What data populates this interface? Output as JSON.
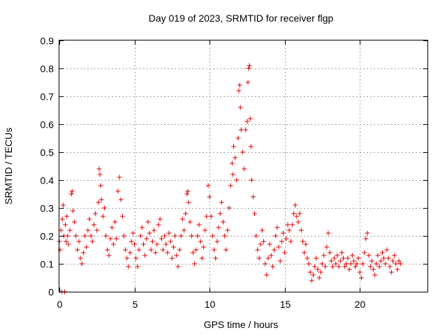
{
  "chart_data": {
    "type": "scatter",
    "title": "Day 019 of 2023, SRMTID for receiver flgp",
    "xlabel": "GPS time / hours",
    "ylabel": "SRMTID / TECUs",
    "xlim": [
      0,
      24.5
    ],
    "ylim": [
      0,
      0.9
    ],
    "grid": true,
    "marker": "plus",
    "color": "#e00000",
    "x_ticks": [
      0,
      5,
      10,
      15,
      20
    ],
    "x_tick_labels": [
      "0",
      "5",
      "10",
      "15",
      "20"
    ],
    "y_ticks": [
      0,
      0.1,
      0.2,
      0.3,
      0.4,
      0.5,
      0.6,
      0.7,
      0.8,
      0.9
    ],
    "y_tick_labels": [
      "0",
      "0.1",
      "0.2",
      "0.3",
      "0.4",
      "0.5",
      "0.6",
      "0.7",
      "0.8",
      "0.9"
    ],
    "series": [
      {
        "name": "SRMTID",
        "points": [
          [
            0.0,
            0.18
          ],
          [
            0.05,
            0.15
          ],
          [
            0.1,
            0.22
          ],
          [
            0.15,
            0.0
          ],
          [
            0.2,
            0.26
          ],
          [
            0.25,
            0.31
          ],
          [
            0.3,
            0.2
          ],
          [
            0.35,
            0.0
          ],
          [
            0.4,
            0.24
          ],
          [
            0.45,
            0.18
          ],
          [
            0.5,
            0.27
          ],
          [
            0.55,
            0.2
          ],
          [
            0.6,
            0.17
          ],
          [
            0.7,
            0.22
          ],
          [
            0.8,
            0.35
          ],
          [
            0.85,
            0.36
          ],
          [
            0.9,
            0.29
          ],
          [
            1.0,
            0.25
          ],
          [
            1.1,
            0.2
          ],
          [
            1.2,
            0.15
          ],
          [
            1.3,
            0.18
          ],
          [
            1.4,
            0.12
          ],
          [
            1.5,
            0.1
          ],
          [
            1.6,
            0.14
          ],
          [
            1.7,
            0.2
          ],
          [
            1.8,
            0.16
          ],
          [
            1.9,
            0.22
          ],
          [
            2.0,
            0.26
          ],
          [
            2.1,
            0.2
          ],
          [
            2.2,
            0.18
          ],
          [
            2.3,
            0.24
          ],
          [
            2.4,
            0.28
          ],
          [
            2.5,
            0.22
          ],
          [
            2.6,
            0.32
          ],
          [
            2.65,
            0.44
          ],
          [
            2.7,
            0.42
          ],
          [
            2.75,
            0.38
          ],
          [
            2.8,
            0.33
          ],
          [
            2.9,
            0.27
          ],
          [
            3.0,
            0.3
          ],
          [
            3.1,
            0.2
          ],
          [
            3.2,
            0.15
          ],
          [
            3.3,
            0.13
          ],
          [
            3.4,
            0.19
          ],
          [
            3.5,
            0.23
          ],
          [
            3.6,
            0.17
          ],
          [
            3.7,
            0.25
          ],
          [
            3.8,
            0.19
          ],
          [
            3.9,
            0.36
          ],
          [
            4.0,
            0.41
          ],
          [
            4.1,
            0.33
          ],
          [
            4.2,
            0.27
          ],
          [
            4.3,
            0.2
          ],
          [
            4.4,
            0.15
          ],
          [
            4.5,
            0.12
          ],
          [
            4.6,
            0.09
          ],
          [
            4.7,
            0.14
          ],
          [
            4.8,
            0.18
          ],
          [
            4.9,
            0.21
          ],
          [
            5.0,
            0.17
          ],
          [
            5.1,
            0.12
          ],
          [
            5.2,
            0.09
          ],
          [
            5.3,
            0.15
          ],
          [
            5.4,
            0.2
          ],
          [
            5.5,
            0.23
          ],
          [
            5.6,
            0.17
          ],
          [
            5.7,
            0.13
          ],
          [
            5.8,
            0.19
          ],
          [
            5.9,
            0.25
          ],
          [
            6.0,
            0.21
          ],
          [
            6.1,
            0.15
          ],
          [
            6.2,
            0.18
          ],
          [
            6.3,
            0.22
          ],
          [
            6.4,
            0.14
          ],
          [
            6.5,
            0.17
          ],
          [
            6.6,
            0.24
          ],
          [
            6.7,
            0.26
          ],
          [
            6.8,
            0.19
          ],
          [
            6.9,
            0.15
          ],
          [
            7.0,
            0.2
          ],
          [
            7.1,
            0.17
          ],
          [
            7.2,
            0.14
          ],
          [
            7.3,
            0.21
          ],
          [
            7.4,
            0.18
          ],
          [
            7.5,
            0.12
          ],
          [
            7.6,
            0.16
          ],
          [
            7.7,
            0.2
          ],
          [
            7.8,
            0.13
          ],
          [
            7.9,
            0.09
          ],
          [
            8.0,
            0.15
          ],
          [
            8.1,
            0.2
          ],
          [
            8.2,
            0.26
          ],
          [
            8.3,
            0.22
          ],
          [
            8.4,
            0.28
          ],
          [
            8.5,
            0.35
          ],
          [
            8.55,
            0.36
          ],
          [
            8.6,
            0.32
          ],
          [
            8.7,
            0.25
          ],
          [
            8.8,
            0.2
          ],
          [
            8.9,
            0.14
          ],
          [
            9.0,
            0.1
          ],
          [
            9.1,
            0.15
          ],
          [
            9.2,
            0.2
          ],
          [
            9.3,
            0.24
          ],
          [
            9.4,
            0.18
          ],
          [
            9.5,
            0.12
          ],
          [
            9.6,
            0.16
          ],
          [
            9.7,
            0.22
          ],
          [
            9.8,
            0.27
          ],
          [
            9.9,
            0.38
          ],
          [
            10.0,
            0.34
          ],
          [
            10.1,
            0.27
          ],
          [
            10.2,
            0.2
          ],
          [
            10.3,
            0.15
          ],
          [
            10.4,
            0.12
          ],
          [
            10.5,
            0.18
          ],
          [
            10.6,
            0.23
          ],
          [
            10.7,
            0.28
          ],
          [
            10.8,
            0.32
          ],
          [
            10.9,
            0.25
          ],
          [
            11.0,
            0.2
          ],
          [
            11.1,
            0.15
          ],
          [
            11.2,
            0.22
          ],
          [
            11.3,
            0.3
          ],
          [
            11.4,
            0.38
          ],
          [
            11.5,
            0.46
          ],
          [
            11.55,
            0.42
          ],
          [
            11.6,
            0.52
          ],
          [
            11.7,
            0.48
          ],
          [
            11.8,
            0.4
          ],
          [
            11.9,
            0.55
          ],
          [
            11.95,
            0.72
          ],
          [
            12.0,
            0.74
          ],
          [
            12.05,
            0.66
          ],
          [
            12.1,
            0.58
          ],
          [
            12.2,
            0.5
          ],
          [
            12.3,
            0.44
          ],
          [
            12.4,
            0.58
          ],
          [
            12.5,
            0.61
          ],
          [
            12.55,
            0.75
          ],
          [
            12.6,
            0.8
          ],
          [
            12.65,
            0.81
          ],
          [
            12.7,
            0.62
          ],
          [
            12.75,
            0.52
          ],
          [
            12.8,
            0.4
          ],
          [
            12.9,
            0.34
          ],
          [
            13.0,
            0.28
          ],
          [
            13.1,
            0.2
          ],
          [
            13.2,
            0.15
          ],
          [
            13.3,
            0.12
          ],
          [
            13.4,
            0.17
          ],
          [
            13.5,
            0.22
          ],
          [
            13.6,
            0.18
          ],
          [
            13.7,
            0.1
          ],
          [
            13.8,
            0.06
          ],
          [
            13.9,
            0.12
          ],
          [
            14.0,
            0.17
          ],
          [
            14.1,
            0.13
          ],
          [
            14.2,
            0.09
          ],
          [
            14.3,
            0.15
          ],
          [
            14.4,
            0.2
          ],
          [
            14.5,
            0.23
          ],
          [
            14.6,
            0.16
          ],
          [
            14.7,
            0.11
          ],
          [
            14.8,
            0.18
          ],
          [
            14.9,
            0.21
          ],
          [
            15.0,
            0.14
          ],
          [
            15.1,
            0.19
          ],
          [
            15.2,
            0.24
          ],
          [
            15.3,
            0.22
          ],
          [
            15.4,
            0.18
          ],
          [
            15.5,
            0.24
          ],
          [
            15.6,
            0.28
          ],
          [
            15.7,
            0.31
          ],
          [
            15.8,
            0.27
          ],
          [
            15.9,
            0.25
          ],
          [
            16.0,
            0.28
          ],
          [
            16.1,
            0.22
          ],
          [
            16.2,
            0.18
          ],
          [
            16.3,
            0.14
          ],
          [
            16.4,
            0.17
          ],
          [
            16.5,
            0.12
          ],
          [
            16.6,
            0.1
          ],
          [
            16.7,
            0.07
          ],
          [
            16.8,
            0.04
          ],
          [
            16.9,
            0.06
          ],
          [
            17.0,
            0.09
          ],
          [
            17.1,
            0.12
          ],
          [
            17.2,
            0.08
          ],
          [
            17.3,
            0.05
          ],
          [
            17.4,
            0.07
          ],
          [
            17.5,
            0.1
          ],
          [
            17.6,
            0.13
          ],
          [
            17.7,
            0.09
          ],
          [
            17.8,
            0.16
          ],
          [
            17.9,
            0.21
          ],
          [
            18.0,
            0.14
          ],
          [
            18.1,
            0.11
          ],
          [
            18.2,
            0.09
          ],
          [
            18.3,
            0.12
          ],
          [
            18.4,
            0.1
          ],
          [
            18.5,
            0.13
          ],
          [
            18.6,
            0.09
          ],
          [
            18.7,
            0.11
          ],
          [
            18.8,
            0.14
          ],
          [
            18.9,
            0.12
          ],
          [
            19.0,
            0.09
          ],
          [
            19.1,
            0.1
          ],
          [
            19.2,
            0.12
          ],
          [
            19.3,
            0.08
          ],
          [
            19.4,
            0.1
          ],
          [
            19.5,
            0.13
          ],
          [
            19.6,
            0.11
          ],
          [
            19.7,
            0.09
          ],
          [
            19.8,
            0.1
          ],
          [
            19.9,
            0.12
          ],
          [
            20.0,
            0.07
          ],
          [
            20.1,
            0.05
          ],
          [
            20.2,
            0.1
          ],
          [
            20.3,
            0.14
          ],
          [
            20.4,
            0.19
          ],
          [
            20.5,
            0.21
          ],
          [
            20.6,
            0.13
          ],
          [
            20.7,
            0.09
          ],
          [
            20.8,
            0.11
          ],
          [
            20.9,
            0.08
          ],
          [
            21.0,
            0.06
          ],
          [
            21.1,
            0.1
          ],
          [
            21.2,
            0.13
          ],
          [
            21.3,
            0.09
          ],
          [
            21.4,
            0.11
          ],
          [
            21.5,
            0.14
          ],
          [
            21.6,
            0.12
          ],
          [
            21.7,
            0.1
          ],
          [
            21.8,
            0.15
          ],
          [
            21.9,
            0.12
          ],
          [
            22.0,
            0.09
          ],
          [
            22.1,
            0.07
          ],
          [
            22.2,
            0.11
          ],
          [
            22.3,
            0.13
          ],
          [
            22.4,
            0.1
          ],
          [
            22.5,
            0.08
          ],
          [
            22.6,
            0.11
          ],
          [
            22.7,
            0.1
          ]
        ]
      }
    ]
  }
}
